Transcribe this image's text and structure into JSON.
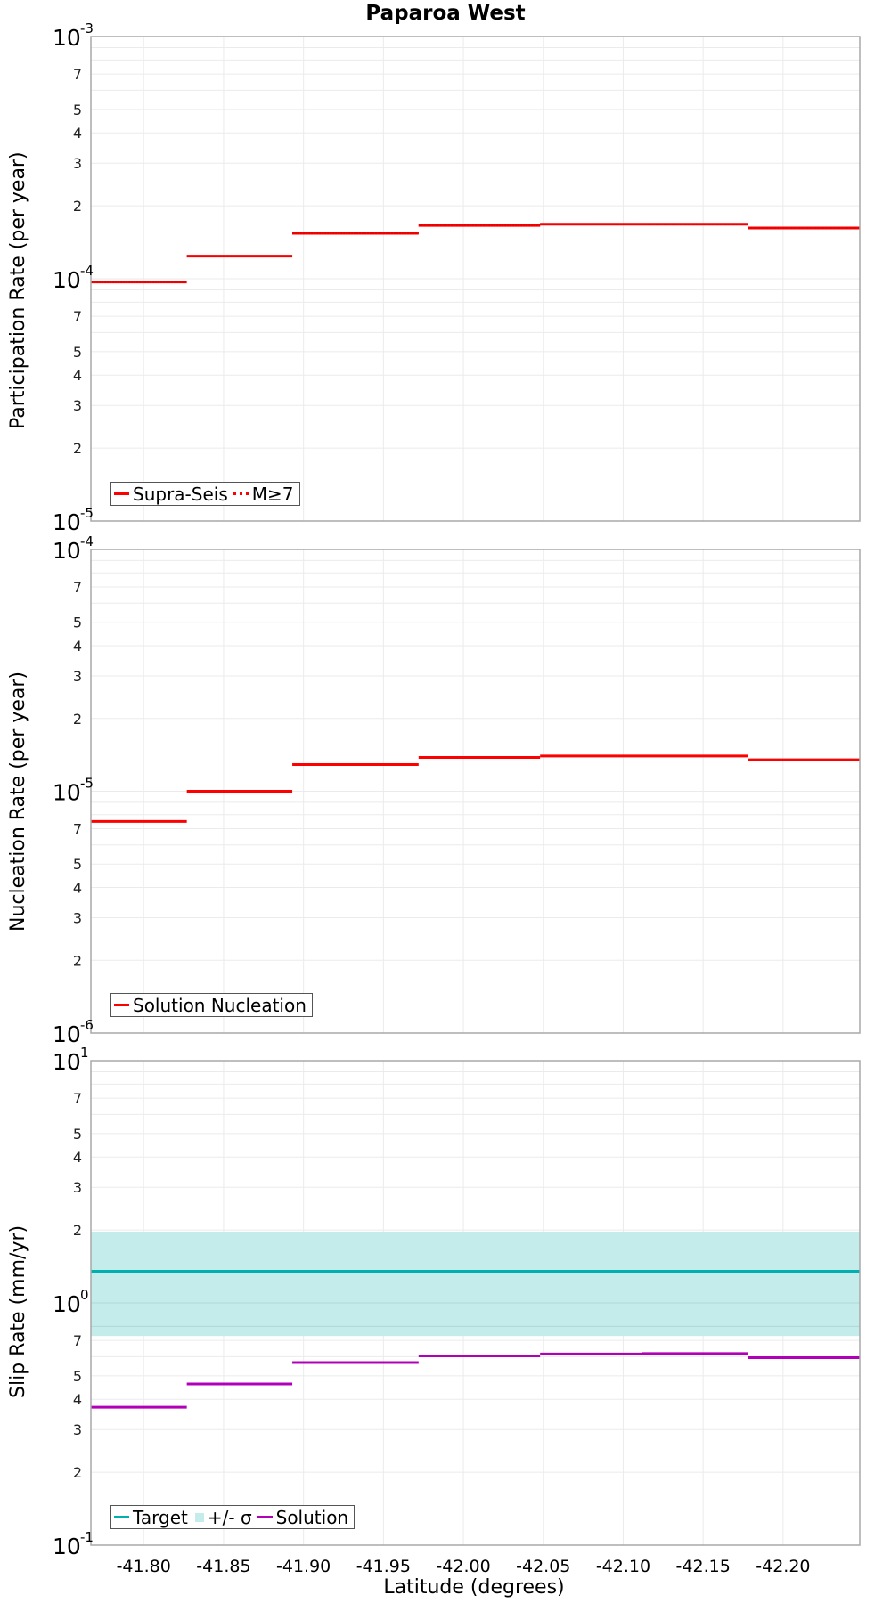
{
  "title": "Paparoa West",
  "xlabel": "Latitude (degrees)",
  "x_ticks": [
    "-41.80",
    "-41.85",
    "-41.90",
    "-41.95",
    "-42.00",
    "-42.05",
    "-42.10",
    "-42.15",
    "-42.20"
  ],
  "panels": [
    {
      "ylabel": "Participation Rate (per year)",
      "decade_labels": [
        {
          "base": "10",
          "exp": "-3"
        },
        {
          "base": "10",
          "exp": "-4"
        },
        {
          "base": "10",
          "exp": "-5"
        }
      ],
      "minor_labels": [
        "7",
        "5",
        "4",
        "3",
        "2"
      ],
      "legend": [
        {
          "label": "Supra-Seis",
          "style": "solid",
          "color": "#ff0000"
        },
        {
          "label": "M≥7",
          "style": "dotted",
          "color": "#ff0000"
        }
      ]
    },
    {
      "ylabel": "Nucleation Rate (per year)",
      "decade_labels": [
        {
          "base": "10",
          "exp": "-4"
        },
        {
          "base": "10",
          "exp": "-5"
        },
        {
          "base": "10",
          "exp": "-6"
        }
      ],
      "minor_labels": [
        "7",
        "5",
        "4",
        "3",
        "2"
      ],
      "legend": [
        {
          "label": "Solution Nucleation",
          "style": "solid",
          "color": "#ff0000"
        }
      ]
    },
    {
      "ylabel": "Slip Rate (mm/yr)",
      "decade_labels": [
        {
          "base": "10",
          "exp": "1"
        },
        {
          "base": "10",
          "exp": "0"
        },
        {
          "base": "10",
          "exp": "-1"
        }
      ],
      "minor_labels": [
        "7",
        "5",
        "4",
        "3",
        "2"
      ],
      "legend": [
        {
          "label": "Target",
          "style": "solid",
          "color": "#00b0b0"
        },
        {
          "label": "+/- σ",
          "style": "box",
          "color": "#c3ecea"
        },
        {
          "label": "Solution",
          "style": "solid",
          "color": "#b000b8"
        }
      ]
    }
  ],
  "chart_data": [
    {
      "type": "line",
      "title": "Paparoa West",
      "xlabel": "Latitude (degrees)",
      "ylabel": "Participation Rate (per year)",
      "yscale": "log",
      "ylim": [
        1e-05,
        0.001
      ],
      "xlim": [
        -41.767,
        -42.248
      ],
      "grid": true,
      "legend_position": "lower-left",
      "segment_bounds": [
        -41.767,
        -41.827,
        -41.893,
        -41.972,
        -42.048,
        -42.112,
        -42.178,
        -42.248
      ],
      "series": [
        {
          "name": "Supra-Seis",
          "style": "solid-step",
          "color": "#ff0000",
          "values": [
            9.7e-05,
            0.000124,
            0.000154,
            0.000166,
            0.000168,
            0.000168,
            0.000162
          ]
        },
        {
          "name": "M≥7",
          "style": "dotted-step",
          "color": "#ff0000",
          "values": [
            9.7e-05,
            0.000124,
            0.000154,
            0.000166,
            0.000168,
            0.000168,
            0.000162
          ]
        }
      ]
    },
    {
      "type": "line",
      "xlabel": "Latitude (degrees)",
      "ylabel": "Nucleation Rate (per year)",
      "yscale": "log",
      "ylim": [
        1e-06,
        0.0001
      ],
      "xlim": [
        -41.767,
        -42.248
      ],
      "grid": true,
      "legend_position": "lower-left",
      "segment_bounds": [
        -41.767,
        -41.827,
        -41.893,
        -41.972,
        -42.048,
        -42.112,
        -42.178,
        -42.248
      ],
      "series": [
        {
          "name": "Solution Nucleation",
          "style": "solid-step",
          "color": "#ff0000",
          "values": [
            7.5e-06,
            1e-05,
            1.29e-05,
            1.38e-05,
            1.4e-05,
            1.4e-05,
            1.35e-05
          ]
        }
      ]
    },
    {
      "type": "line",
      "xlabel": "Latitude (degrees)",
      "ylabel": "Slip Rate (mm/yr)",
      "yscale": "log",
      "ylim": [
        0.1,
        10
      ],
      "xlim": [
        -41.767,
        -42.248
      ],
      "grid": true,
      "legend_position": "lower-left",
      "segment_bounds": [
        -41.767,
        -41.827,
        -41.893,
        -41.972,
        -42.048,
        -42.112,
        -42.178,
        -42.248
      ],
      "series": [
        {
          "name": "Target",
          "style": "solid",
          "color": "#00b0b0",
          "values": [
            1.35,
            1.35,
            1.35,
            1.35,
            1.35,
            1.35,
            1.35
          ]
        },
        {
          "name": "+/- σ",
          "style": "band",
          "color": "#c3ecea",
          "lower": 0.73,
          "upper": 1.97
        },
        {
          "name": "Solution",
          "style": "solid-step",
          "color": "#b000b8",
          "values": [
            0.371,
            0.463,
            0.567,
            0.604,
            0.615,
            0.618,
            0.594
          ]
        }
      ]
    }
  ]
}
